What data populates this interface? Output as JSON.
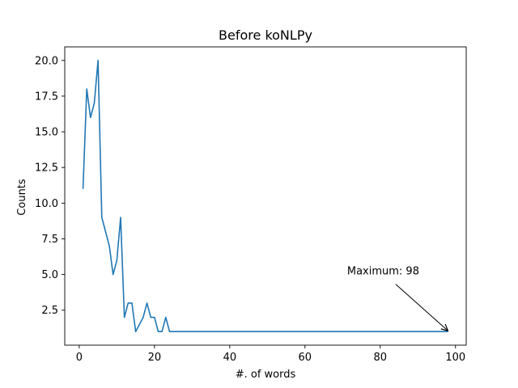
{
  "chart_data": {
    "type": "line",
    "title": "Before koNLPy",
    "xlabel": "#. of words",
    "ylabel": "Counts",
    "xlim": [
      -3.85,
      102.85
    ],
    "ylim": [
      0.05,
      20.95
    ],
    "xticks": [
      0,
      20,
      40,
      60,
      80,
      100
    ],
    "xtick_labels": [
      "0",
      "20",
      "40",
      "60",
      "80",
      "100"
    ],
    "yticks": [
      2.5,
      5.0,
      7.5,
      10.0,
      12.5,
      15.0,
      17.5,
      20.0
    ],
    "ytick_labels": [
      "2.5",
      "5.0",
      "7.5",
      "10.0",
      "12.5",
      "15.0",
      "17.5",
      "20.0"
    ],
    "grid": false,
    "legend": "none",
    "series": [
      {
        "color": "#1f77b4",
        "x": [
          1,
          2,
          3,
          4,
          5,
          6,
          7,
          8,
          9,
          10,
          11,
          12,
          13,
          14,
          15,
          16,
          17,
          18,
          19,
          20,
          21,
          22,
          23,
          24,
          98
        ],
        "y": [
          11,
          18,
          16,
          17,
          20,
          9,
          8,
          7,
          5,
          6,
          9,
          2,
          3,
          3,
          1,
          1.5,
          2,
          3,
          2,
          2,
          1,
          1,
          2,
          1,
          1
        ]
      }
    ],
    "annotations": [
      {
        "text": "Maximum: 98",
        "text_at": [
          71.2,
          5.0
        ],
        "arrow_to": [
          98,
          1
        ]
      }
    ]
  }
}
